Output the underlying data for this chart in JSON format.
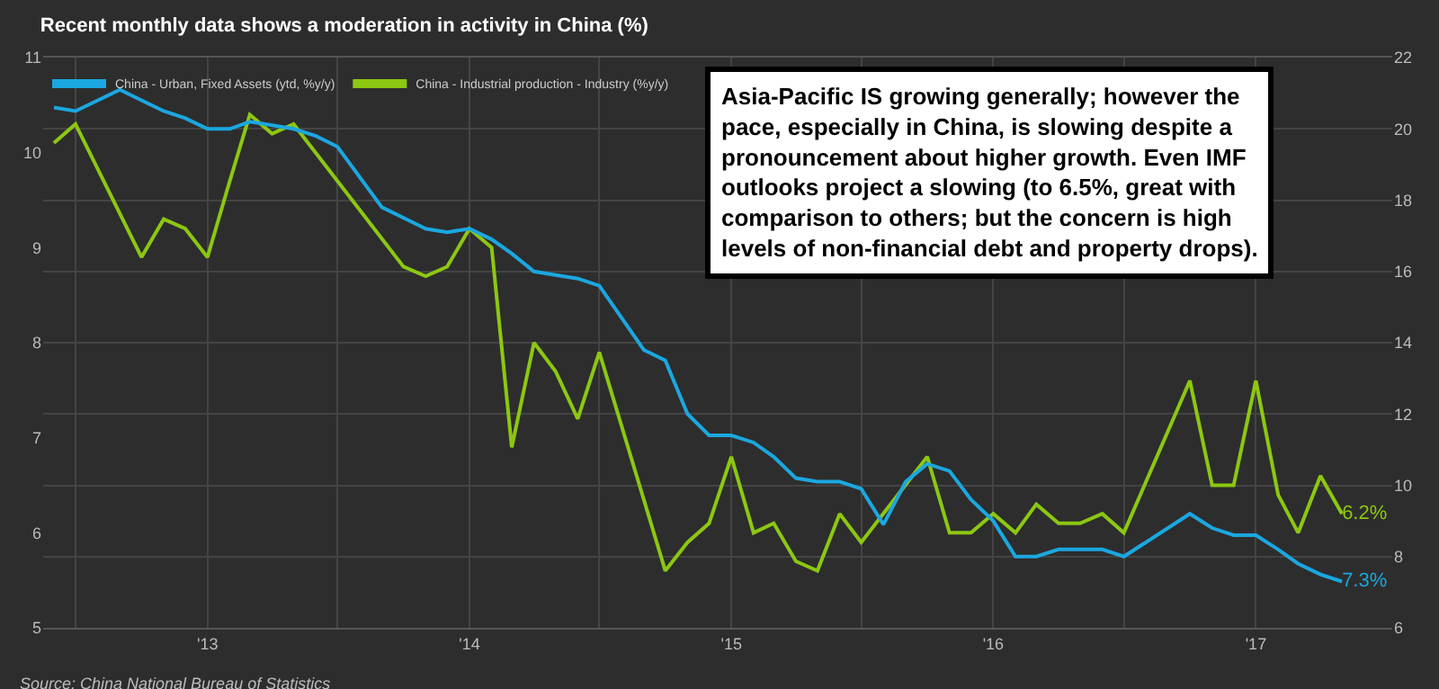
{
  "chart_data": {
    "type": "line",
    "title": "Recent monthly data shows a moderation in activity in China (%)",
    "annotations": [
      "Asia-Pacific IS growing generally; however the pace, especially in China, is slowing despite a pronouncement about higher growth. Even IMF outlooks project a slowing (to 6.5%, great with comparison to others; but the concern is high levels of non-financial debt and property drops).",
      "Source: China National Bureau of Statistics"
    ],
    "series": [
      {
        "name": "China - Urban, Fixed Assets (ytd, %y/y)",
        "color": "#1ba7e0",
        "axis": "y2",
        "x": [
          "2012-06",
          "2012-07",
          "2012-09",
          "2012-10",
          "2012-11",
          "2012-12",
          "2013-01",
          "2013-02",
          "2013-03",
          "2013-04",
          "2013-05",
          "2013-06",
          "2013-07",
          "2013-09",
          "2013-11",
          "2013-12",
          "2014-01",
          "2014-02",
          "2014-03",
          "2014-04",
          "2014-05",
          "2014-06",
          "2014-07",
          "2014-09",
          "2014-10",
          "2014-11",
          "2014-12",
          "2015-01",
          "2015-02",
          "2015-03",
          "2015-04",
          "2015-05",
          "2015-06",
          "2015-07",
          "2015-08",
          "2015-09",
          "2015-10",
          "2015-11",
          "2015-12",
          "2016-01",
          "2016-02",
          "2016-03",
          "2016-04",
          "2016-05",
          "2016-06",
          "2016-07",
          "2016-10",
          "2016-11",
          "2016-12",
          "2017-01",
          "2017-02",
          "2017-03",
          "2017-04",
          "2017-05"
        ],
        "values": [
          20.6,
          20.5,
          21.1,
          20.8,
          20.5,
          20.3,
          20.0,
          20.0,
          20.2,
          20.1,
          20.0,
          19.8,
          19.5,
          17.8,
          17.2,
          17.1,
          17.2,
          16.9,
          16.5,
          16.0,
          15.9,
          15.8,
          15.6,
          13.8,
          13.5,
          12.0,
          11.4,
          11.4,
          11.2,
          10.8,
          10.2,
          10.1,
          10.1,
          9.9,
          8.9,
          10.1,
          10.6,
          10.4,
          9.6,
          9.0,
          8.0,
          8.0,
          8.2,
          8.2,
          8.2,
          8.0,
          9.2,
          8.8,
          8.6,
          8.6,
          8.2,
          7.8,
          7.5,
          7.3
        ],
        "value_labels": [
          null,
          null,
          null,
          null,
          null,
          null,
          null,
          null,
          null,
          null,
          null,
          null,
          null,
          null,
          null,
          null,
          null,
          null,
          null,
          null,
          null,
          null,
          null,
          null,
          null,
          null,
          null,
          null,
          null,
          null,
          null,
          null,
          null,
          null,
          null,
          null,
          null,
          null,
          null,
          null,
          null,
          null,
          null,
          null,
          null,
          null,
          null,
          null,
          null,
          null,
          null,
          null,
          null,
          "7.3%"
        ]
      },
      {
        "name": "China - Industrial production - Industry (%y/y)",
        "color": "#8cc712",
        "x": [
          "2012-06",
          "2012-07",
          "2012-10",
          "2012-11",
          "2012-12",
          "2013-01",
          "2013-02",
          "2013-03",
          "2013-04",
          "2013-05",
          "2013-10",
          "2013-11",
          "2013-12",
          "2014-01",
          "2014-02",
          "2014-03",
          "2014-04",
          "2014-05",
          "2014-06",
          "2014-07",
          "2014-10",
          "2014-11",
          "2014-12",
          "2015-01",
          "2015-02",
          "2015-03",
          "2015-04",
          "2015-05",
          "2015-06",
          "2015-07",
          "2015-10",
          "2015-11",
          "2015-12",
          "2016-01",
          "2016-02",
          "2016-03",
          "2016-04",
          "2016-05",
          "2016-06",
          "2016-07",
          "2016-10",
          "2016-11",
          "2016-12",
          "2017-01",
          "2017-02",
          "2017-03",
          "2017-04",
          "2017-05"
        ],
        "values": [
          10.1,
          10.3,
          8.9,
          9.3,
          9.2,
          8.9,
          9.7,
          10.4,
          10.2,
          10.3,
          8.8,
          8.7,
          8.8,
          9.2,
          9.0,
          6.9,
          8.0,
          7.7,
          7.2,
          7.9,
          5.6,
          5.9,
          6.1,
          6.8,
          6.0,
          6.1,
          5.7,
          5.6,
          6.2,
          5.9,
          6.8,
          6.0,
          6.0,
          6.2,
          6.0,
          6.3,
          6.1,
          6.1,
          6.2,
          6.0,
          7.6,
          6.5,
          6.5,
          7.6,
          6.4,
          6.0,
          6.6,
          6.2
        ],
        "value_labels": [
          null,
          null,
          null,
          null,
          null,
          null,
          null,
          null,
          null,
          null,
          null,
          null,
          null,
          null,
          null,
          null,
          null,
          null,
          null,
          null,
          null,
          null,
          null,
          null,
          null,
          null,
          null,
          null,
          null,
          null,
          null,
          null,
          null,
          null,
          null,
          null,
          null,
          null,
          null,
          null,
          null,
          null,
          null,
          null,
          null,
          null,
          null,
          "6.2%"
        ]
      }
    ],
    "xlim": [
      "2012-05-17",
      "2017-07-10"
    ],
    "xticks": [
      {
        "value": "2012-07-01",
        "label": null
      },
      {
        "value": "2013-01-01",
        "label": "'13"
      },
      {
        "value": "2013-07-01",
        "label": null
      },
      {
        "value": "2014-01-01",
        "label": "'14"
      },
      {
        "value": "2014-07-01",
        "label": null
      },
      {
        "value": "2015-01-01",
        "label": "'15"
      },
      {
        "value": "2015-07-01",
        "label": null
      },
      {
        "value": "2016-01-01",
        "label": "'16"
      },
      {
        "value": "2016-07-01",
        "label": null
      },
      {
        "value": "2017-01-01",
        "label": "'17"
      }
    ],
    "ylim": [
      5,
      11
    ],
    "yticks": [
      5,
      6,
      7,
      8,
      9,
      10,
      11
    ],
    "y2lim": [
      6,
      22
    ],
    "y2ticks": [
      6,
      8,
      10,
      12,
      14,
      16,
      18,
      20,
      22
    ],
    "grid": true,
    "legend": "top left",
    "marker": "none",
    "line_style": "solid"
  }
}
